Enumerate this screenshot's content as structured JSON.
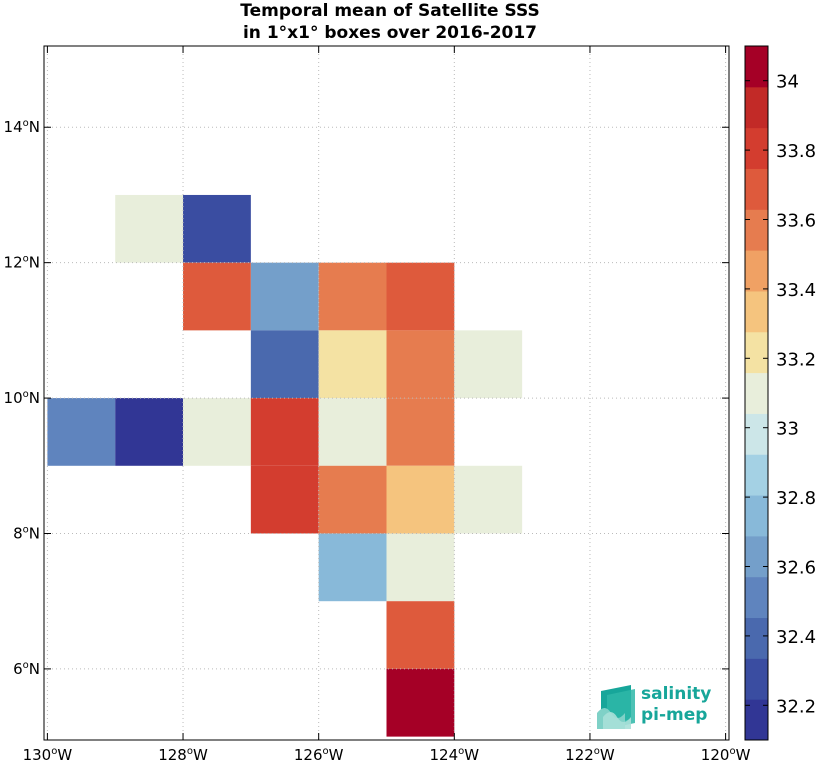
{
  "chart_data": {
    "type": "heatmap",
    "title_lines": [
      "Temporal mean of Satellite SSS",
      "in 1°x1° boxes over 2016-2017"
    ],
    "x_range": [
      -130.05,
      -119.95
    ],
    "y_range": [
      4.95,
      15.2
    ],
    "x_ticks": [
      {
        "value": -130,
        "deg": "130",
        "hemi": "W"
      },
      {
        "value": -128,
        "deg": "128",
        "hemi": "W"
      },
      {
        "value": -126,
        "deg": "126",
        "hemi": "W"
      },
      {
        "value": -124,
        "deg": "124",
        "hemi": "W"
      },
      {
        "value": -122,
        "deg": "122",
        "hemi": "W"
      },
      {
        "value": -120,
        "deg": "120",
        "hemi": "W"
      }
    ],
    "y_ticks": [
      {
        "value": 6,
        "deg": "6",
        "hemi": "N"
      },
      {
        "value": 8,
        "deg": "8",
        "hemi": "N"
      },
      {
        "value": 10,
        "deg": "10",
        "hemi": "N"
      },
      {
        "value": 12,
        "deg": "12",
        "hemi": "N"
      },
      {
        "value": 14,
        "deg": "14",
        "hemi": "N"
      }
    ],
    "grid": true,
    "color_range": [
      32.1,
      34.1
    ],
    "colorbar_ticks": [
      "32.2",
      "32.4",
      "32.6",
      "32.8",
      "33",
      "33.2",
      "33.4",
      "33.6",
      "33.8",
      "34"
    ],
    "colormap": [
      "#313695",
      "#3a4da1",
      "#4a69ae",
      "#5f84be",
      "#749fca",
      "#88b9d9",
      "#a4d1e4",
      "#cce6e8",
      "#e8eedb",
      "#f4e2a3",
      "#f5c47e",
      "#f0a164",
      "#e67c4f",
      "#de5a3c",
      "#d33d2f",
      "#c22a27",
      "#a50026"
    ],
    "cells": [
      {
        "lon": -129,
        "lat": 12,
        "value": 33.05
      },
      {
        "lon": -128,
        "lat": 12,
        "value": 32.3
      },
      {
        "lon": -128,
        "lat": 11,
        "value": 33.65
      },
      {
        "lon": -127,
        "lat": 11,
        "value": 32.65
      },
      {
        "lon": -126,
        "lat": 11,
        "value": 33.52
      },
      {
        "lon": -125,
        "lat": 11,
        "value": 33.7
      },
      {
        "lon": -127,
        "lat": 10,
        "value": 32.42
      },
      {
        "lon": -126,
        "lat": 10,
        "value": 33.25
      },
      {
        "lon": -125,
        "lat": 10,
        "value": 33.52
      },
      {
        "lon": -124,
        "lat": 10,
        "value": 33.05
      },
      {
        "lon": -130,
        "lat": 9,
        "value": 32.55
      },
      {
        "lon": -129,
        "lat": 9,
        "value": 32.2
      },
      {
        "lon": -128,
        "lat": 9,
        "value": 33.05
      },
      {
        "lon": -127,
        "lat": 9,
        "value": 33.78
      },
      {
        "lon": -126,
        "lat": 9,
        "value": 33.15
      },
      {
        "lon": -125,
        "lat": 9,
        "value": 33.52
      },
      {
        "lon": -127,
        "lat": 8,
        "value": 33.85
      },
      {
        "lon": -126,
        "lat": 8,
        "value": 33.52
      },
      {
        "lon": -125,
        "lat": 8,
        "value": 33.35
      },
      {
        "lon": -124,
        "lat": 8,
        "value": 33.15
      },
      {
        "lon": -126,
        "lat": 7,
        "value": 32.72
      },
      {
        "lon": -125,
        "lat": 7,
        "value": 33.15
      },
      {
        "lon": -125,
        "lat": 6,
        "value": 33.65
      },
      {
        "lon": -125,
        "lat": 5,
        "value": 34.05
      }
    ]
  },
  "logo": {
    "line1": "salinity",
    "line2": "pi-mep",
    "colors": [
      "#17a69a",
      "#7fd1c7"
    ]
  }
}
